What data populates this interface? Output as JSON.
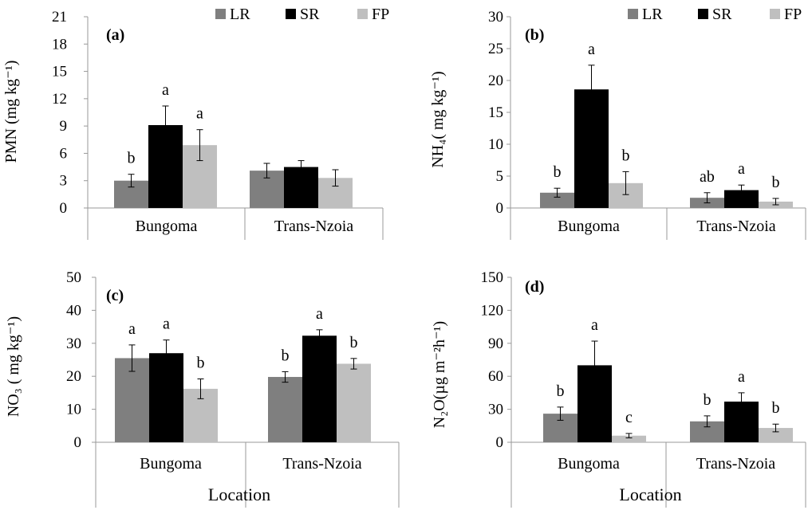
{
  "colors": {
    "LR": "#7f7f7f",
    "SR": "#000000",
    "FP": "#bfbfbf"
  },
  "legend": [
    "LR",
    "SR",
    "FP"
  ],
  "chart_data": [
    {
      "type": "bar",
      "panel_label": "(a)",
      "ylabel": "PMN (mg kg⁻¹)",
      "xlabel": "",
      "ylim": [
        0,
        21
      ],
      "yticks": [
        0,
        3,
        6,
        9,
        12,
        15,
        18,
        21
      ],
      "categories": [
        "Bungoma",
        "Trans-Nzoia"
      ],
      "legend_position": "top-right",
      "series": [
        {
          "name": "LR",
          "values": [
            3.0,
            4.1
          ],
          "errors": [
            0.7,
            0.8
          ],
          "labels": [
            "b",
            ""
          ]
        },
        {
          "name": "SR",
          "values": [
            9.1,
            4.5
          ],
          "errors": [
            2.1,
            0.7
          ],
          "labels": [
            "a",
            ""
          ]
        },
        {
          "name": "FP",
          "values": [
            6.9,
            3.3
          ],
          "errors": [
            1.7,
            0.9
          ],
          "labels": [
            "a",
            ""
          ]
        }
      ]
    },
    {
      "type": "bar",
      "panel_label": "(b)",
      "ylabel": "NH₄( mg kg⁻¹)",
      "xlabel": "",
      "ylim": [
        0,
        30
      ],
      "yticks": [
        0,
        5,
        10,
        15,
        20,
        25,
        30
      ],
      "categories": [
        "Bungoma",
        "Trans-Nzoia"
      ],
      "legend_position": "top-right",
      "series": [
        {
          "name": "LR",
          "values": [
            2.4,
            1.6
          ],
          "errors": [
            0.7,
            0.8
          ],
          "labels": [
            "b",
            "ab"
          ]
        },
        {
          "name": "SR",
          "values": [
            18.6,
            2.8
          ],
          "errors": [
            3.8,
            0.8
          ],
          "labels": [
            "a",
            "a"
          ]
        },
        {
          "name": "FP",
          "values": [
            3.9,
            1.0
          ],
          "errors": [
            1.8,
            0.5
          ],
          "labels": [
            "b",
            "b"
          ]
        }
      ]
    },
    {
      "type": "bar",
      "panel_label": "(c)",
      "ylabel": "NO₃ ( mg kg⁻¹)",
      "xlabel": "Location",
      "ylim": [
        0,
        50
      ],
      "yticks": [
        0,
        10,
        20,
        30,
        40,
        50
      ],
      "categories": [
        "Bungoma",
        "Trans-Nzoia"
      ],
      "series": [
        {
          "name": "LR",
          "values": [
            25.5,
            19.8
          ],
          "errors": [
            4.0,
            1.6
          ],
          "labels": [
            "a",
            "b"
          ]
        },
        {
          "name": "SR",
          "values": [
            27.0,
            32.3
          ],
          "errors": [
            4.0,
            1.8
          ],
          "labels": [
            "a",
            "a"
          ]
        },
        {
          "name": "FP",
          "values": [
            16.2,
            23.8
          ],
          "errors": [
            3.0,
            1.6
          ],
          "labels": [
            "b",
            "b"
          ]
        }
      ]
    },
    {
      "type": "bar",
      "panel_label": "(d)",
      "ylabel": "N₂O(µg m⁻²h⁻¹)",
      "xlabel": "Location",
      "ylim": [
        0,
        150
      ],
      "yticks": [
        0,
        30,
        60,
        90,
        120,
        150
      ],
      "categories": [
        "Bungoma",
        "Trans-Nzoia"
      ],
      "series": [
        {
          "name": "LR",
          "values": [
            26,
            19
          ],
          "errors": [
            6,
            5
          ],
          "labels": [
            "b",
            "b"
          ]
        },
        {
          "name": "SR",
          "values": [
            70,
            37
          ],
          "errors": [
            22,
            8
          ],
          "labels": [
            "a",
            "a"
          ]
        },
        {
          "name": "FP",
          "values": [
            6,
            13
          ],
          "errors": [
            2,
            3.5
          ],
          "labels": [
            "c",
            "b"
          ]
        }
      ]
    }
  ]
}
